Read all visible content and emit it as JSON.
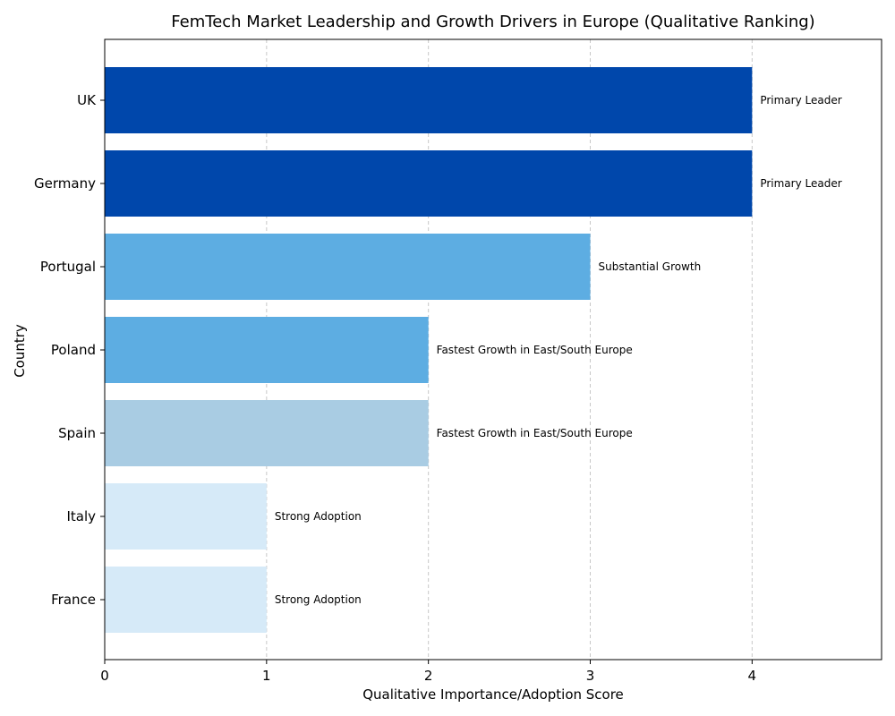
{
  "chart_data": {
    "type": "bar",
    "orientation": "horizontal",
    "title": "FemTech Market Leadership and Growth Drivers in Europe (Qualitative Ranking)",
    "xlabel": "Qualitative Importance/Adoption Score",
    "ylabel": "Country",
    "xlim": [
      0,
      4.8
    ],
    "xticks": [
      "0",
      "1",
      "2",
      "3",
      "4"
    ],
    "grid": "x-dashed",
    "categories": [
      "UK",
      "Germany",
      "Portugal",
      "Poland",
      "Spain",
      "Italy",
      "France"
    ],
    "values": [
      4,
      4,
      3,
      2,
      2,
      1,
      1
    ],
    "labels": [
      "Primary Leader",
      "Primary Leader",
      "Substantial Growth",
      "Fastest Growth in East/South Europe",
      "Fastest Growth in East/South Europe",
      "Strong Adoption",
      "Strong Adoption"
    ],
    "colors": [
      "#0047ab",
      "#0047ab",
      "#5dade2",
      "#5dade2",
      "#a9cce3",
      "#d6eaf8",
      "#d6eaf8"
    ]
  }
}
